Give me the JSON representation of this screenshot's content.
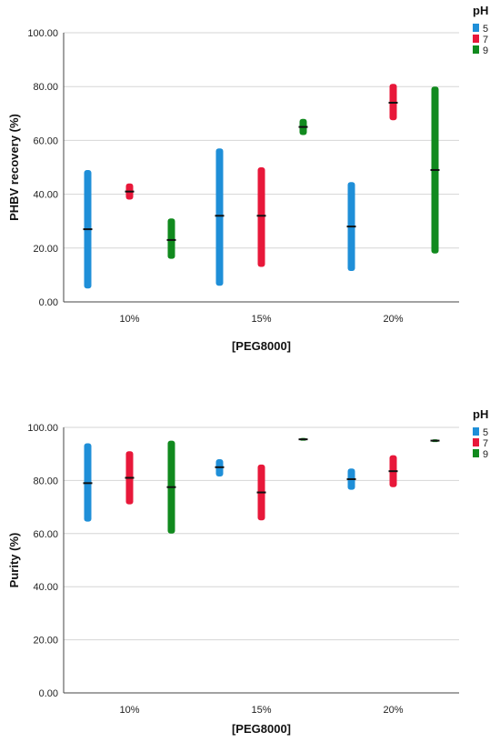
{
  "chart_data": [
    {
      "type": "range",
      "xlabel": "[PEG8000]",
      "ylabel": "PHBV recovery (%)",
      "ylim": [
        0,
        100
      ],
      "yticks": [
        "0.00",
        "20.00",
        "40.00",
        "60.00",
        "80.00",
        "100.00"
      ],
      "categories": [
        "10%",
        "15%",
        "20%"
      ],
      "legend_title": "pH",
      "legend_position": "top-right",
      "grid": true,
      "series": [
        {
          "name": "5",
          "color": "#1f8fd8",
          "ranges": [
            {
              "low": 5,
              "high": 49,
              "mid": 27
            },
            {
              "low": 6,
              "high": 57,
              "mid": 32
            },
            {
              "low": 11.5,
              "high": 44.5,
              "mid": 28
            }
          ]
        },
        {
          "name": "7",
          "color": "#e8183a",
          "ranges": [
            {
              "low": 38,
              "high": 44,
              "mid": 41
            },
            {
              "low": 13,
              "high": 50,
              "mid": 32
            },
            {
              "low": 67.5,
              "high": 81,
              "mid": 74
            }
          ]
        },
        {
          "name": "9",
          "color": "#118a1e",
          "ranges": [
            {
              "low": 16,
              "high": 31,
              "mid": 23
            },
            {
              "low": 62,
              "high": 68,
              "mid": 65
            },
            {
              "low": 18,
              "high": 80,
              "mid": 49
            }
          ]
        }
      ]
    },
    {
      "type": "range",
      "xlabel": "[PEG8000]",
      "ylabel": "Purity (%)",
      "ylim": [
        0,
        100
      ],
      "yticks": [
        "0.00",
        "20.00",
        "40.00",
        "60.00",
        "80.00",
        "100.00"
      ],
      "categories": [
        "10%",
        "15%",
        "20%"
      ],
      "legend_title": "pH",
      "legend_position": "top-right",
      "grid": true,
      "series": [
        {
          "name": "5",
          "color": "#1f8fd8",
          "ranges": [
            {
              "low": 64.5,
              "high": 94,
              "mid": 79
            },
            {
              "low": 81.5,
              "high": 88,
              "mid": 85
            },
            {
              "low": 76.5,
              "high": 84.5,
              "mid": 80.5
            }
          ]
        },
        {
          "name": "7",
          "color": "#e8183a",
          "ranges": [
            {
              "low": 71,
              "high": 91,
              "mid": 81
            },
            {
              "low": 65,
              "high": 86,
              "mid": 75.5
            },
            {
              "low": 77.5,
              "high": 89.5,
              "mid": 83.5
            }
          ]
        },
        {
          "name": "9",
          "color": "#118a1e",
          "ranges": [
            {
              "low": 60,
              "high": 95,
              "mid": 77.5
            },
            {
              "low": 95,
              "high": 96,
              "mid": 95.5
            },
            {
              "low": 94.5,
              "high": 95.5,
              "mid": 95
            }
          ]
        }
      ]
    }
  ]
}
